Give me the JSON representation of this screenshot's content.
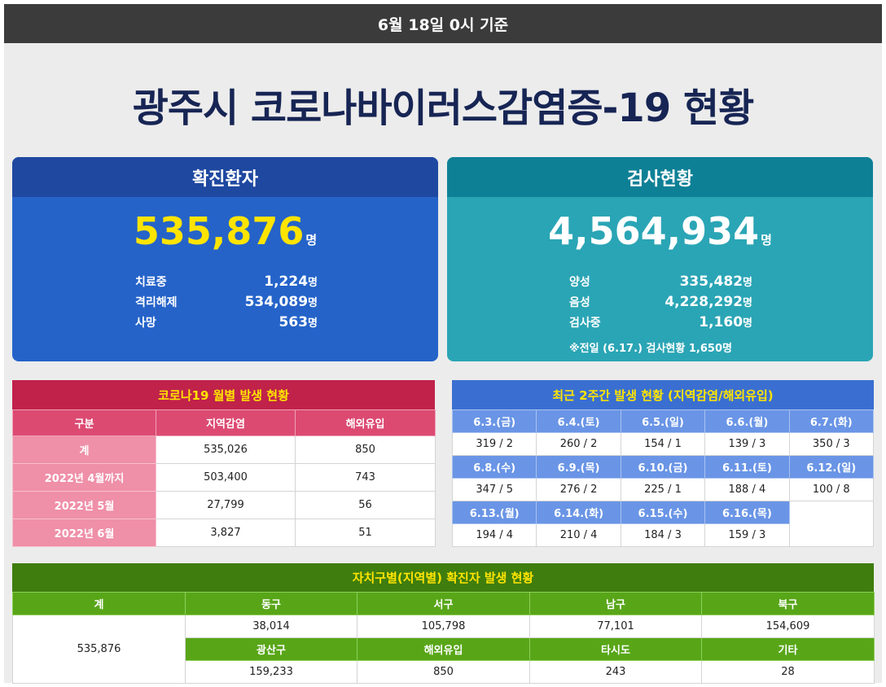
{
  "header": {
    "date_label": "6월 18일 0시 기준"
  },
  "title": "광주시 코로나바이러스감염증-19 현황",
  "colors": {
    "navy": "#172554",
    "confirmed_blue": "#2563c9",
    "test_teal": "#2aa5b5",
    "monthly_red": "#c0224a",
    "recent_blue": "#3a6fd1",
    "district_green": "#3f7d0e",
    "yellow": "#ffe400"
  },
  "confirmed": {
    "title": "확진환자",
    "total": "535,876",
    "unit": "명",
    "rows": [
      {
        "label": "치료중",
        "value": "1,224",
        "unit": "명"
      },
      {
        "label": "격리해제",
        "value": "534,089",
        "unit": "명"
      },
      {
        "label": "사망",
        "value": "563",
        "unit": "명"
      }
    ]
  },
  "tests": {
    "title": "검사현황",
    "total": "4,564,934",
    "unit": "명",
    "rows": [
      {
        "label": "양성",
        "value": "335,482",
        "unit": "명"
      },
      {
        "label": "음성",
        "value": "4,228,292",
        "unit": "명"
      },
      {
        "label": "검사중",
        "value": "1,160",
        "unit": "명"
      }
    ],
    "note": "※전일 (6.17.) 검사현황 1,650명"
  },
  "monthly": {
    "title": "코로나19 월별 발생 현황",
    "headers": [
      "구분",
      "지역감염",
      "해외유입"
    ],
    "rows": [
      {
        "label": "계",
        "local": "535,026",
        "overseas": "850"
      },
      {
        "label": "2022년 4월까지",
        "local": "503,400",
        "overseas": "743"
      },
      {
        "label": "2022년 5월",
        "local": "27,799",
        "overseas": "56"
      },
      {
        "label": "2022년 6월",
        "local": "3,827",
        "overseas": "51"
      }
    ]
  },
  "recent": {
    "title": "최근 2주간 발생 현황 (지역감염/해외유입)",
    "weeks": [
      {
        "dates": [
          "6.3.(금)",
          "6.4.(토)",
          "6.5.(일)",
          "6.6.(월)",
          "6.7.(화)"
        ],
        "values": [
          "319 / 2",
          "260 / 2",
          "154 / 1",
          "139 / 3",
          "350 / 3"
        ]
      },
      {
        "dates": [
          "6.8.(수)",
          "6.9.(목)",
          "6.10.(금)",
          "6.11.(토)",
          "6.12.(일)"
        ],
        "values": [
          "347 / 5",
          "276 / 2",
          "225 / 1",
          "188 / 4",
          "100 / 8"
        ]
      },
      {
        "dates": [
          "6.13.(월)",
          "6.14.(화)",
          "6.15.(수)",
          "6.16.(목)"
        ],
        "values": [
          "194 / 4",
          "210 / 4",
          "184 / 3",
          "159 / 3"
        ]
      }
    ]
  },
  "district": {
    "title": "자치구별(지역별) 확진자 발생 현황",
    "total_label": "계",
    "total_value": "535,876",
    "row1_labels": [
      "동구",
      "서구",
      "남구",
      "북구"
    ],
    "row1_values": [
      "38,014",
      "105,798",
      "77,101",
      "154,609"
    ],
    "row2_labels": [
      "광산구",
      "해외유입",
      "타시도",
      "기타"
    ],
    "row2_values": [
      "159,233",
      "850",
      "243",
      "28"
    ]
  }
}
